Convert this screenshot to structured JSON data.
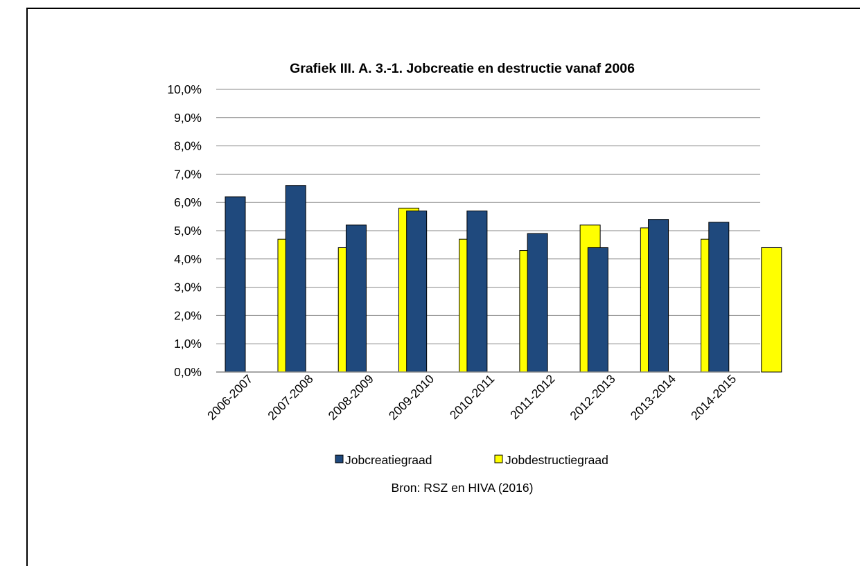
{
  "chart_data": {
    "type": "bar",
    "title": "Grafiek III. A. 3.-1. Jobcreatie en destructie vanaf 2006",
    "xlabel": "",
    "ylabel": "",
    "categories": [
      "2006-2007",
      "2007-2008",
      "2008-2009",
      "2009-2010",
      "2010-2011",
      "2011-2012",
      "2012-2013",
      "2013-2014",
      "2014-2015"
    ],
    "series": [
      {
        "name": "Jobcreatiegraad",
        "values": [
          6.2,
          6.6,
          5.2,
          5.7,
          5.7,
          4.9,
          4.4,
          5.4,
          5.3
        ],
        "color": "#1f497d"
      },
      {
        "name": "Jobdestructiegraad",
        "values": [
          4.7,
          4.4,
          5.8,
          4.7,
          4.3,
          5.2,
          5.1,
          4.7,
          4.4
        ],
        "color": "#ffff00"
      }
    ],
    "ylim": [
      0,
      10
    ],
    "yticks": [
      "0,0%",
      "1,0%",
      "2,0%",
      "3,0%",
      "4,0%",
      "5,0%",
      "6,0%",
      "7,0%",
      "8,0%",
      "9,0%",
      "10,0%"
    ],
    "grid": true,
    "legend_position": "bottom",
    "source": "Bron: RSZ en HIVA (2016)"
  }
}
